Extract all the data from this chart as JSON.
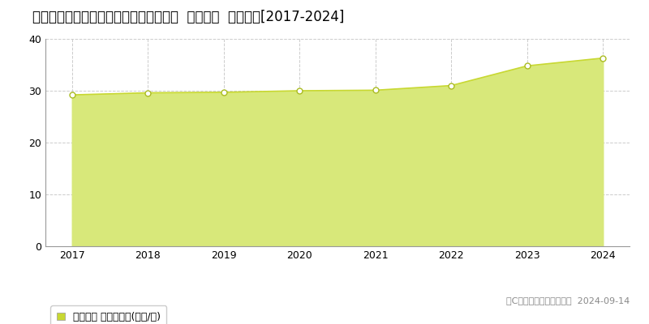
{
  "title": "愛知県東海市加木屋町東大堀２８番３７  地価公示  地価推移[2017-2024]",
  "years": [
    2017,
    2018,
    2019,
    2020,
    2021,
    2022,
    2023,
    2024
  ],
  "values": [
    29.2,
    29.6,
    29.7,
    30.0,
    30.1,
    31.0,
    34.8,
    36.3
  ],
  "line_color": "#c8d832",
  "fill_color": "#d8e87a",
  "marker_color": "#ffffff",
  "marker_edge_color": "#aabb22",
  "bg_color": "#ffffff",
  "grid_color": "#cccccc",
  "ylim": [
    0,
    40
  ],
  "yticks": [
    0,
    10,
    20,
    30,
    40
  ],
  "legend_label": "地価公示 平均坪単価(万円/坪)",
  "legend_square_color": "#c8d832",
  "copyright_text": "（C）土地価格ドットコム  2024-09-14",
  "title_fontsize": 12,
  "axis_fontsize": 9,
  "legend_fontsize": 9,
  "copyright_fontsize": 8
}
